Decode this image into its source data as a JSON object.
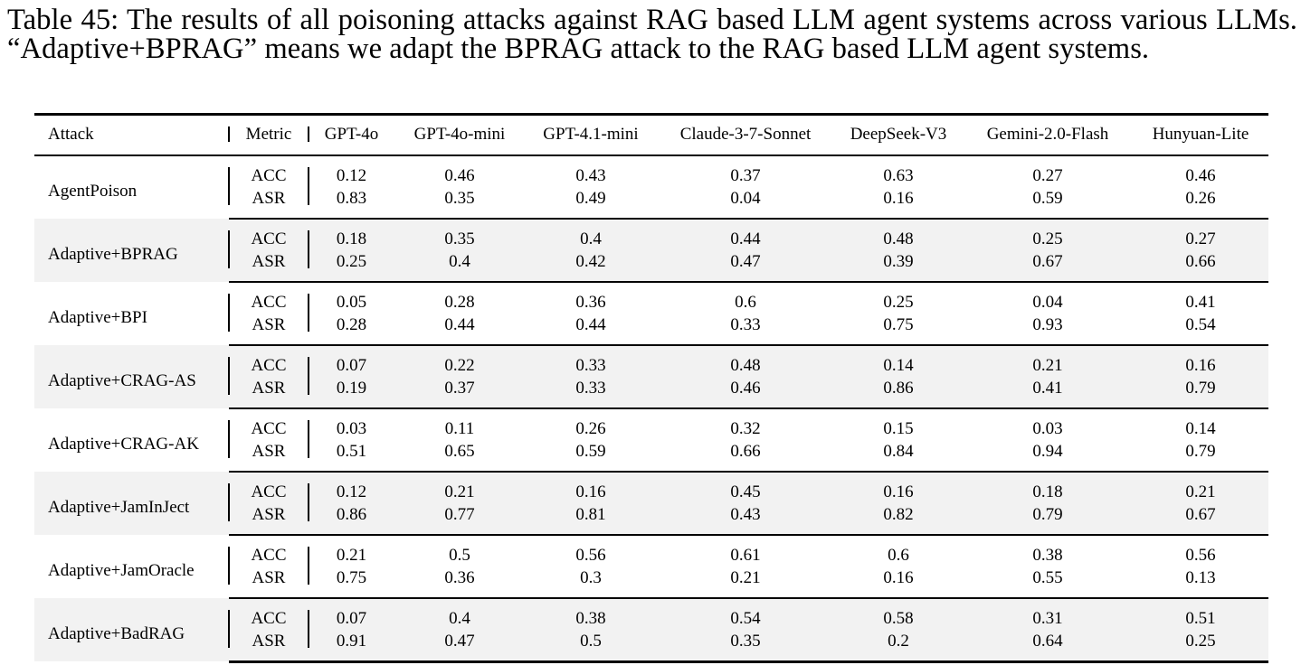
{
  "caption": "Table 45: The results of all poisoning attacks against RAG based LLM agent systems across various LLMs. “Adaptive+BPRAG” means we adapt the BPRAG attack to the RAG based LLM agent systems.",
  "headers": {
    "attack": "Attack",
    "metric": "Metric",
    "models": [
      "GPT-4o",
      "GPT-4o-mini",
      "GPT-4.1-mini",
      "Claude-3-7-Sonnet",
      "DeepSeek-V3",
      "Gemini-2.0-Flash",
      "Hunyuan-Lite"
    ]
  },
  "rows": [
    {
      "attack": "AgentPoison",
      "shaded": false,
      "acc_label": "ACC",
      "asr_label": "ASR",
      "acc": [
        "0.12",
        "0.46",
        "0.43",
        "0.37",
        "0.63",
        "0.27",
        "0.46"
      ],
      "asr": [
        "0.83",
        "0.35",
        "0.49",
        "0.04",
        "0.16",
        "0.59",
        "0.26"
      ]
    },
    {
      "attack": "Adaptive+BPRAG",
      "shaded": true,
      "acc_label": "ACC",
      "asr_label": "ASR",
      "acc": [
        "0.18",
        "0.35",
        "0.4",
        "0.44",
        "0.48",
        "0.25",
        "0.27"
      ],
      "asr": [
        "0.25",
        "0.4",
        "0.42",
        "0.47",
        "0.39",
        "0.67",
        "0.66"
      ]
    },
    {
      "attack": "Adaptive+BPI",
      "shaded": false,
      "acc_label": "ACC",
      "asr_label": "ASR",
      "acc": [
        "0.05",
        "0.28",
        "0.36",
        "0.6",
        "0.25",
        "0.04",
        "0.41"
      ],
      "asr": [
        "0.28",
        "0.44",
        "0.44",
        "0.33",
        "0.75",
        "0.93",
        "0.54"
      ]
    },
    {
      "attack": "Adaptive+CRAG-AS",
      "shaded": true,
      "acc_label": "ACC",
      "asr_label": "ASR",
      "acc": [
        "0.07",
        "0.22",
        "0.33",
        "0.48",
        "0.14",
        "0.21",
        "0.16"
      ],
      "asr": [
        "0.19",
        "0.37",
        "0.33",
        "0.46",
        "0.86",
        "0.41",
        "0.79"
      ]
    },
    {
      "attack": "Adaptive+CRAG-AK",
      "shaded": false,
      "acc_label": "ACC",
      "asr_label": "ASR",
      "acc": [
        "0.03",
        "0.11",
        "0.26",
        "0.32",
        "0.15",
        "0.03",
        "0.14"
      ],
      "asr": [
        "0.51",
        "0.65",
        "0.59",
        "0.66",
        "0.84",
        "0.94",
        "0.79"
      ]
    },
    {
      "attack": "Adaptive+JamInJect",
      "shaded": true,
      "acc_label": "ACC",
      "asr_label": "ASR",
      "acc": [
        "0.12",
        "0.21",
        "0.16",
        "0.45",
        "0.16",
        "0.18",
        "0.21"
      ],
      "asr": [
        "0.86",
        "0.77",
        "0.81",
        "0.43",
        "0.82",
        "0.79",
        "0.67"
      ]
    },
    {
      "attack": "Adaptive+JamOracle",
      "shaded": false,
      "acc_label": "ACC",
      "asr_label": "ASR",
      "acc": [
        "0.21",
        "0.5",
        "0.56",
        "0.61",
        "0.6",
        "0.38",
        "0.56"
      ],
      "asr": [
        "0.75",
        "0.36",
        "0.3",
        "0.21",
        "0.16",
        "0.55",
        "0.13"
      ]
    },
    {
      "attack": "Adaptive+BadRAG",
      "shaded": true,
      "acc_label": "ACC",
      "asr_label": "ASR",
      "acc": [
        "0.07",
        "0.4",
        "0.38",
        "0.54",
        "0.58",
        "0.31",
        "0.51"
      ],
      "asr": [
        "0.91",
        "0.47",
        "0.5",
        "0.35",
        "0.2",
        "0.64",
        "0.25"
      ]
    }
  ]
}
